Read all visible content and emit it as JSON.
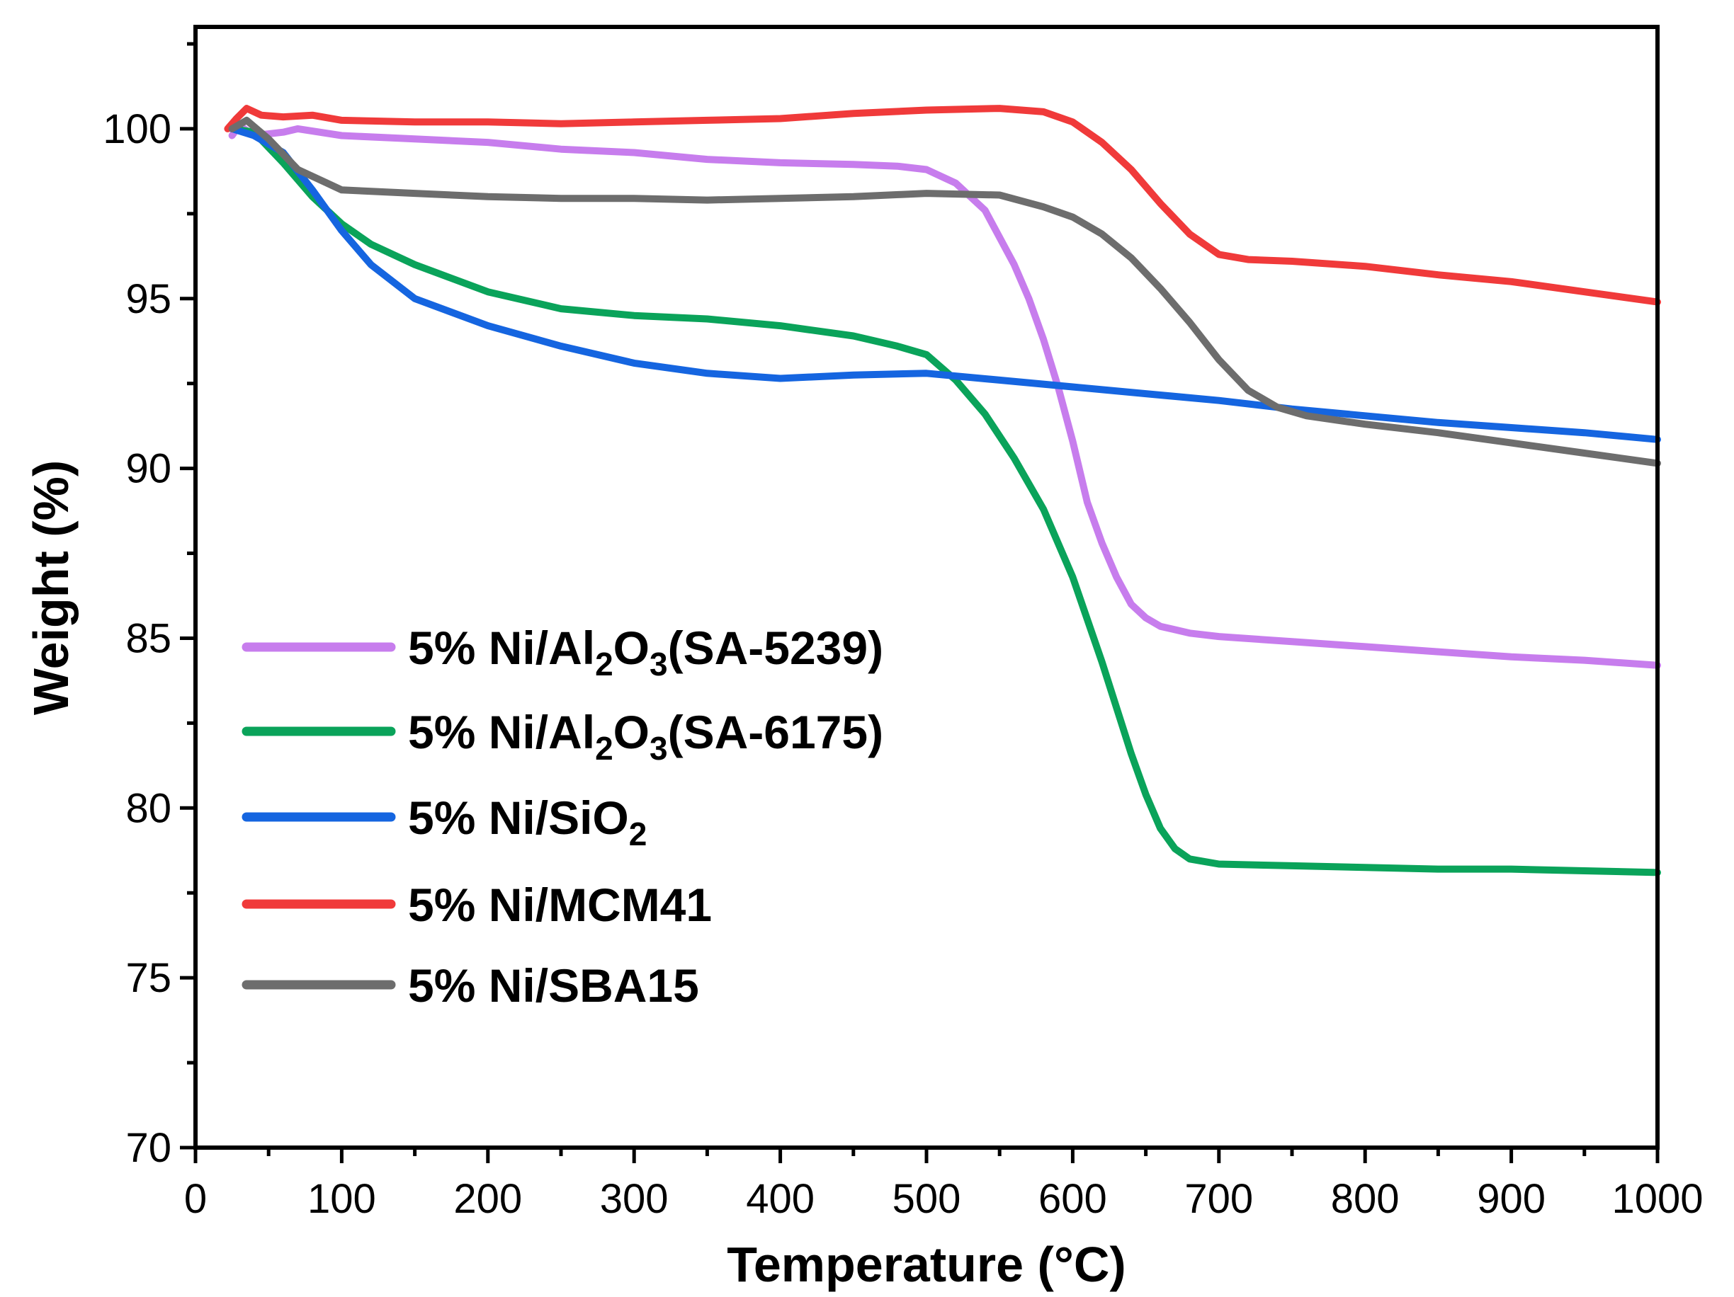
{
  "chart_data": {
    "type": "line",
    "title": "",
    "xlabel": "Temperature (°C)",
    "ylabel": "Weight (%)",
    "xlim": [
      0,
      1000
    ],
    "ylim": [
      70,
      103
    ],
    "xticks": [
      0,
      100,
      200,
      300,
      400,
      500,
      600,
      700,
      800,
      900,
      1000
    ],
    "yticks": [
      70,
      75,
      80,
      85,
      90,
      95,
      100
    ],
    "xtick_labels": [
      "0",
      "100",
      "200",
      "300",
      "400",
      "500",
      "600",
      "700",
      "800",
      "900",
      "1000"
    ],
    "ytick_labels": [
      "70",
      "75",
      "80",
      "85",
      "90",
      "95",
      "100"
    ],
    "grid": false,
    "legend_position": "center-left",
    "series": [
      {
        "name": "5% Ni/Al2O3(SA-5239)",
        "legend_parts": [
          {
            "t": "5% Ni/Al",
            "sub": false
          },
          {
            "t": "2",
            "sub": true
          },
          {
            "t": "O",
            "sub": false
          },
          {
            "t": "3",
            "sub": true
          },
          {
            "t": "(SA-5239)",
            "sub": false
          }
        ],
        "color": "#c77ded",
        "x": [
          25,
          30,
          40,
          60,
          70,
          100,
          150,
          200,
          250,
          300,
          350,
          400,
          450,
          480,
          500,
          520,
          540,
          560,
          570,
          580,
          590,
          600,
          610,
          620,
          630,
          640,
          650,
          660,
          680,
          700,
          750,
          800,
          850,
          900,
          950,
          1000
        ],
        "y": [
          99.8,
          100.1,
          99.8,
          99.9,
          100.0,
          99.8,
          99.7,
          99.6,
          99.4,
          99.3,
          99.1,
          99.0,
          98.95,
          98.9,
          98.8,
          98.4,
          97.6,
          96.0,
          95.0,
          93.8,
          92.4,
          90.8,
          89.0,
          87.8,
          86.8,
          86.0,
          85.6,
          85.35,
          85.15,
          85.05,
          84.9,
          84.75,
          84.6,
          84.45,
          84.35,
          84.2
        ]
      },
      {
        "name": "5% Ni/Al2O3(SA-6175)",
        "legend_parts": [
          {
            "t": "5% Ni/Al",
            "sub": false
          },
          {
            "t": "2",
            "sub": true
          },
          {
            "t": "O",
            "sub": false
          },
          {
            "t": "3",
            "sub": true
          },
          {
            "t": "(SA-6175)",
            "sub": false
          }
        ],
        "color": "#0aa35a",
        "x": [
          25,
          40,
          60,
          80,
          100,
          120,
          150,
          200,
          250,
          300,
          350,
          400,
          450,
          480,
          500,
          520,
          540,
          560,
          580,
          600,
          620,
          640,
          650,
          660,
          670,
          680,
          700,
          750,
          800,
          850,
          900,
          950,
          1000
        ],
        "y": [
          100.0,
          99.9,
          99.0,
          98.0,
          97.2,
          96.6,
          96.0,
          95.2,
          94.7,
          94.5,
          94.4,
          94.2,
          93.9,
          93.6,
          93.35,
          92.6,
          91.6,
          90.3,
          88.8,
          86.8,
          84.3,
          81.6,
          80.4,
          79.4,
          78.8,
          78.5,
          78.35,
          78.3,
          78.25,
          78.2,
          78.2,
          78.15,
          78.1
        ]
      },
      {
        "name": "5% Ni/SiO2",
        "legend_parts": [
          {
            "t": "5% Ni/SiO",
            "sub": false
          },
          {
            "t": "2",
            "sub": true
          }
        ],
        "color": "#1565e0",
        "x": [
          25,
          40,
          60,
          80,
          100,
          120,
          150,
          200,
          250,
          300,
          350,
          400,
          450,
          500,
          550,
          600,
          650,
          700,
          750,
          800,
          850,
          900,
          950,
          1000
        ],
        "y": [
          100.0,
          99.8,
          99.3,
          98.2,
          97.0,
          96.0,
          95.0,
          94.2,
          93.6,
          93.1,
          92.8,
          92.65,
          92.75,
          92.8,
          92.6,
          92.4,
          92.2,
          92.0,
          91.75,
          91.55,
          91.35,
          91.2,
          91.05,
          90.85
        ]
      },
      {
        "name": "5% Ni/MCM41",
        "legend_parts": [
          {
            "t": "5% Ni/MCM41",
            "sub": false
          }
        ],
        "color": "#f03a3a",
        "x": [
          22,
          28,
          35,
          45,
          60,
          80,
          100,
          150,
          200,
          250,
          300,
          350,
          400,
          450,
          500,
          550,
          580,
          600,
          620,
          640,
          660,
          680,
          700,
          720,
          750,
          800,
          850,
          900,
          950,
          1000
        ],
        "y": [
          100.0,
          100.3,
          100.6,
          100.4,
          100.35,
          100.4,
          100.25,
          100.2,
          100.2,
          100.15,
          100.2,
          100.25,
          100.3,
          100.45,
          100.55,
          100.6,
          100.5,
          100.2,
          99.6,
          98.8,
          97.8,
          96.9,
          96.3,
          96.15,
          96.1,
          95.95,
          95.7,
          95.5,
          95.2,
          94.9
        ]
      },
      {
        "name": "5% Ni/SBA15",
        "legend_parts": [
          {
            "t": "5% Ni/SBA15",
            "sub": false
          }
        ],
        "color": "#6d6d6d",
        "x": [
          25,
          35,
          50,
          70,
          90,
          100,
          150,
          200,
          250,
          300,
          350,
          400,
          450,
          500,
          550,
          580,
          600,
          620,
          640,
          660,
          680,
          700,
          720,
          740,
          760,
          800,
          850,
          900,
          950,
          1000
        ],
        "y": [
          100.0,
          100.25,
          99.7,
          98.8,
          98.4,
          98.2,
          98.1,
          98.0,
          97.95,
          97.95,
          97.9,
          97.95,
          98.0,
          98.1,
          98.05,
          97.7,
          97.4,
          96.9,
          96.2,
          95.3,
          94.3,
          93.2,
          92.3,
          91.8,
          91.55,
          91.3,
          91.05,
          90.75,
          90.45,
          90.15
        ]
      }
    ]
  }
}
